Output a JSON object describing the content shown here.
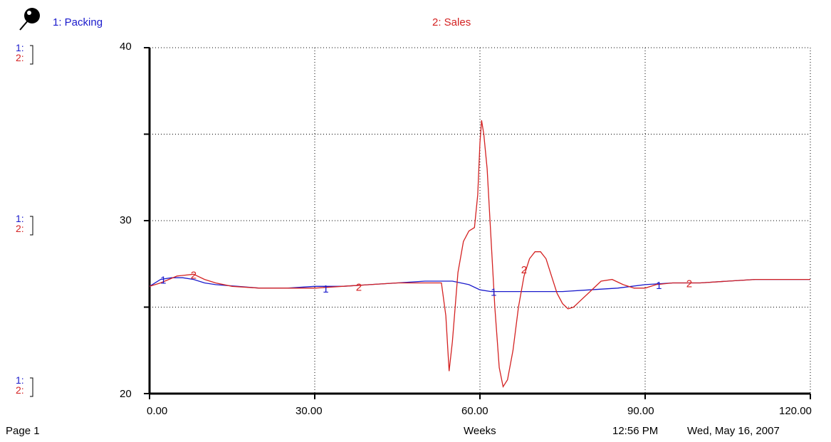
{
  "legend": {
    "series1": "1: Packing",
    "series2": "2: Sales",
    "scale_marker_1": "1:",
    "scale_marker_2": "2:"
  },
  "footer": {
    "page": "Page 1",
    "time": "12:56 PM",
    "date": "Wed, May 16, 2007"
  },
  "icon": "pin-icon",
  "colors": {
    "series1": "#1a1acc",
    "series2": "#d42222"
  },
  "chart_data": {
    "type": "line",
    "xlabel": "Weeks",
    "ylabel": "",
    "xlim": [
      0,
      120
    ],
    "ylim": [
      20,
      40
    ],
    "x_ticks": [
      "0.00",
      "30.00",
      "60.00",
      "90.00",
      "120.00"
    ],
    "y_ticks": [
      "20",
      "30",
      "40"
    ],
    "grid": true,
    "series": [
      {
        "name": "1: Packing",
        "marker": "1",
        "color": "#1a1acc",
        "points": [
          [
            0,
            26.2
          ],
          [
            2,
            26.6
          ],
          [
            4,
            26.7
          ],
          [
            6,
            26.7
          ],
          [
            8,
            26.6
          ],
          [
            10,
            26.4
          ],
          [
            12,
            26.3
          ],
          [
            16,
            26.2
          ],
          [
            20,
            26.1
          ],
          [
            25,
            26.1
          ],
          [
            30,
            26.2
          ],
          [
            35,
            26.2
          ],
          [
            40,
            26.3
          ],
          [
            45,
            26.4
          ],
          [
            50,
            26.5
          ],
          [
            55,
            26.5
          ],
          [
            58,
            26.3
          ],
          [
            60,
            26.0
          ],
          [
            62,
            25.9
          ],
          [
            66,
            25.9
          ],
          [
            70,
            25.9
          ],
          [
            75,
            25.9
          ],
          [
            80,
            26.0
          ],
          [
            85,
            26.1
          ],
          [
            90,
            26.3
          ],
          [
            95,
            26.4
          ],
          [
            100,
            26.4
          ],
          [
            105,
            26.5
          ],
          [
            110,
            26.6
          ],
          [
            115,
            26.6
          ],
          [
            120,
            26.6
          ]
        ],
        "label_points": [
          [
            2.5,
            26.6
          ],
          [
            32,
            26.1
          ],
          [
            62.5,
            25.9
          ],
          [
            92.5,
            26.3
          ]
        ]
      },
      {
        "name": "2: Sales",
        "marker": "2",
        "color": "#d42222",
        "points": [
          [
            0,
            26.2
          ],
          [
            2,
            26.4
          ],
          [
            5,
            26.8
          ],
          [
            8,
            26.9
          ],
          [
            10,
            26.6
          ],
          [
            12,
            26.4
          ],
          [
            15,
            26.2
          ],
          [
            20,
            26.1
          ],
          [
            25,
            26.1
          ],
          [
            30,
            26.1
          ],
          [
            35,
            26.2
          ],
          [
            40,
            26.3
          ],
          [
            45,
            26.4
          ],
          [
            50,
            26.4
          ],
          [
            53,
            26.4
          ],
          [
            53.8,
            24.5
          ],
          [
            54.4,
            21.3
          ],
          [
            55,
            23.0
          ],
          [
            56,
            27.0
          ],
          [
            57,
            28.8
          ],
          [
            58,
            29.4
          ],
          [
            59,
            29.6
          ],
          [
            59.6,
            31.5
          ],
          [
            60,
            34.5
          ],
          [
            60.3,
            35.8
          ],
          [
            60.7,
            35.0
          ],
          [
            61.3,
            33.0
          ],
          [
            62,
            29.0
          ],
          [
            62.7,
            25.0
          ],
          [
            63.5,
            21.5
          ],
          [
            64.2,
            20.4
          ],
          [
            65,
            20.8
          ],
          [
            66,
            22.5
          ],
          [
            67,
            25.0
          ],
          [
            68,
            26.8
          ],
          [
            69,
            27.8
          ],
          [
            70,
            28.2
          ],
          [
            71,
            28.2
          ],
          [
            72,
            27.8
          ],
          [
            73,
            26.8
          ],
          [
            74,
            25.8
          ],
          [
            75,
            25.2
          ],
          [
            76,
            24.9
          ],
          [
            77,
            25.0
          ],
          [
            78,
            25.3
          ],
          [
            80,
            25.9
          ],
          [
            82,
            26.5
          ],
          [
            84,
            26.6
          ],
          [
            86,
            26.3
          ],
          [
            88,
            26.1
          ],
          [
            90,
            26.1
          ],
          [
            92,
            26.3
          ],
          [
            95,
            26.4
          ],
          [
            100,
            26.4
          ],
          [
            105,
            26.5
          ],
          [
            110,
            26.6
          ],
          [
            115,
            26.6
          ],
          [
            120,
            26.6
          ]
        ],
        "label_points": [
          [
            8,
            26.9
          ],
          [
            38,
            26.2
          ],
          [
            68,
            27.2
          ],
          [
            98,
            26.4
          ]
        ]
      }
    ]
  }
}
